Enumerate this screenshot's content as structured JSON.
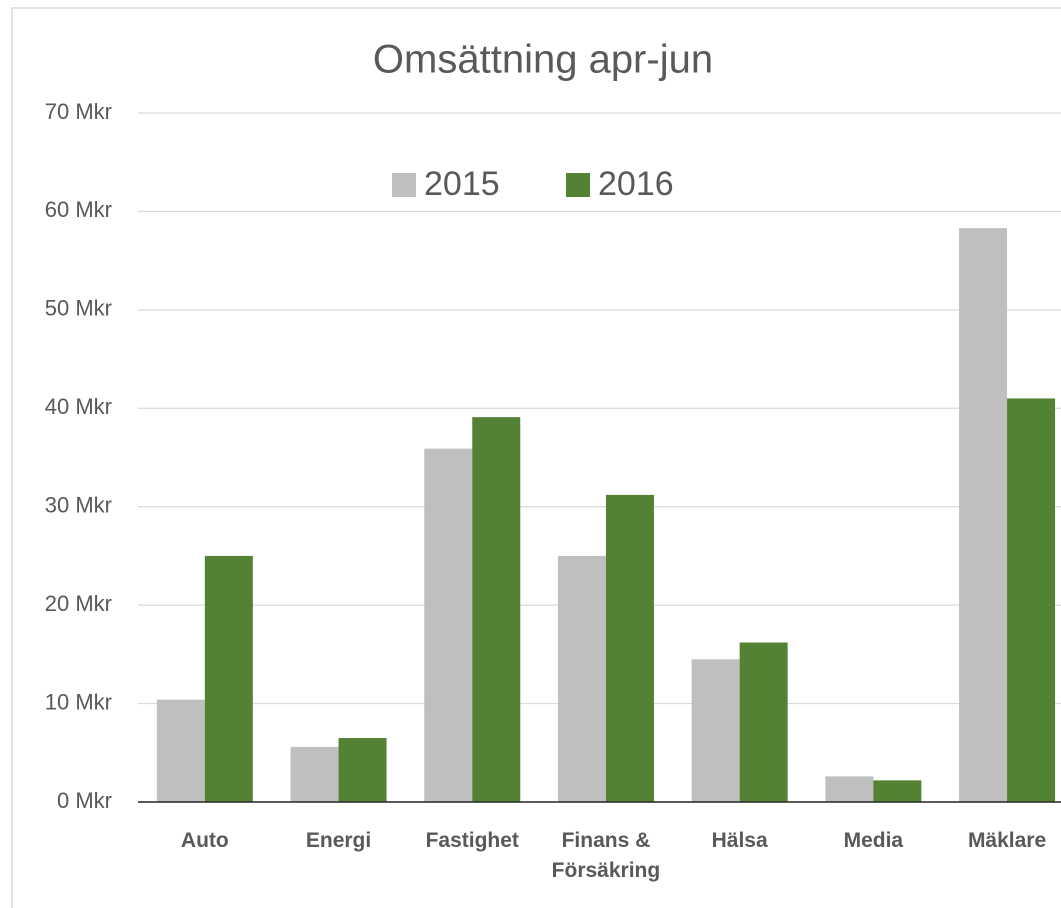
{
  "chart_data": {
    "type": "bar",
    "title": "Omsättning apr-jun",
    "categories": [
      "Auto",
      "Energi",
      "Fastighet",
      "Finans & Försäkring",
      "Hälsa",
      "Media",
      "Mäklare"
    ],
    "series": [
      {
        "name": "2015",
        "color": "#bfbfbf",
        "values": [
          10.4,
          5.6,
          35.9,
          25.0,
          14.5,
          2.6,
          58.3
        ]
      },
      {
        "name": "2016",
        "color": "#548235",
        "values": [
          25.0,
          6.5,
          39.1,
          31.2,
          16.2,
          2.2,
          41.0
        ]
      }
    ],
    "ylim": [
      0,
      70
    ],
    "yticks": [
      {
        "value": 0,
        "label": "0 Mkr"
      },
      {
        "value": 10,
        "label": "10 Mkr"
      },
      {
        "value": 20,
        "label": "20 Mkr"
      },
      {
        "value": 30,
        "label": "30 Mkr"
      },
      {
        "value": 40,
        "label": "40 Mkr"
      },
      {
        "value": 50,
        "label": "50 Mkr"
      },
      {
        "value": 60,
        "label": "60 Mkr"
      },
      {
        "value": 70,
        "label": "70 Mkr"
      }
    ],
    "grid": true,
    "legend": "top"
  }
}
